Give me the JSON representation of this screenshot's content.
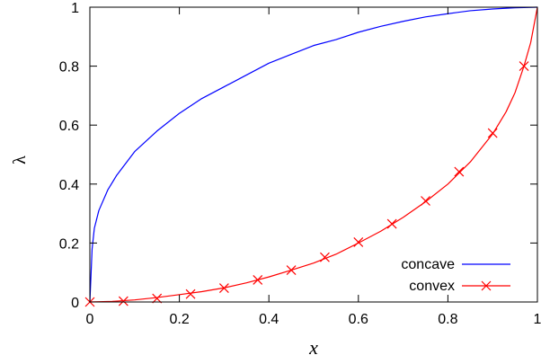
{
  "chart_data": {
    "type": "line",
    "title": "",
    "xlabel": "x",
    "ylabel": "λ",
    "xlim": [
      0,
      1
    ],
    "ylim": [
      0,
      1
    ],
    "x_ticks": [
      "0",
      "0.2",
      "0.4",
      "0.6",
      "0.8",
      "1"
    ],
    "y_ticks": [
      "0",
      "0.2",
      "0.4",
      "0.6",
      "0.8",
      "1"
    ],
    "grid": false,
    "legend_position": "bottom-right",
    "series": [
      {
        "name": "concave",
        "color": "#0000ff",
        "marker": "none",
        "points": [
          [
            0,
            0
          ],
          [
            0.005,
            0.18
          ],
          [
            0.01,
            0.25
          ],
          [
            0.02,
            0.31
          ],
          [
            0.04,
            0.38
          ],
          [
            0.06,
            0.43
          ],
          [
            0.08,
            0.47
          ],
          [
            0.1,
            0.51
          ],
          [
            0.15,
            0.58
          ],
          [
            0.2,
            0.64
          ],
          [
            0.25,
            0.69
          ],
          [
            0.3,
            0.73
          ],
          [
            0.35,
            0.77
          ],
          [
            0.4,
            0.81
          ],
          [
            0.45,
            0.84
          ],
          [
            0.5,
            0.87
          ],
          [
            0.55,
            0.89
          ],
          [
            0.6,
            0.915
          ],
          [
            0.65,
            0.935
          ],
          [
            0.7,
            0.952
          ],
          [
            0.75,
            0.967
          ],
          [
            0.8,
            0.978
          ],
          [
            0.85,
            0.988
          ],
          [
            0.9,
            0.994
          ],
          [
            0.95,
            0.998
          ],
          [
            1,
            1
          ]
        ]
      },
      {
        "name": "convex",
        "color": "#ff0000",
        "marker": "x",
        "points": [
          [
            0,
            0
          ],
          [
            0.05,
            0.002
          ],
          [
            0.1,
            0.007
          ],
          [
            0.15,
            0.015
          ],
          [
            0.2,
            0.025
          ],
          [
            0.25,
            0.035
          ],
          [
            0.3,
            0.048
          ],
          [
            0.35,
            0.065
          ],
          [
            0.4,
            0.085
          ],
          [
            0.45,
            0.108
          ],
          [
            0.5,
            0.132
          ],
          [
            0.55,
            0.162
          ],
          [
            0.6,
            0.2
          ],
          [
            0.65,
            0.24
          ],
          [
            0.7,
            0.287
          ],
          [
            0.75,
            0.34
          ],
          [
            0.8,
            0.4
          ],
          [
            0.85,
            0.475
          ],
          [
            0.9,
            0.57
          ],
          [
            0.93,
            0.645
          ],
          [
            0.95,
            0.71
          ],
          [
            0.97,
            0.8
          ],
          [
            0.985,
            0.88
          ],
          [
            1,
            1
          ]
        ],
        "marker_points": [
          [
            0,
            0
          ],
          [
            0.075,
            0.003
          ],
          [
            0.15,
            0.012
          ],
          [
            0.225,
            0.027
          ],
          [
            0.3,
            0.047
          ],
          [
            0.375,
            0.075
          ],
          [
            0.45,
            0.108
          ],
          [
            0.525,
            0.152
          ],
          [
            0.6,
            0.203
          ],
          [
            0.675,
            0.265
          ],
          [
            0.75,
            0.343
          ],
          [
            0.825,
            0.442
          ],
          [
            0.9,
            0.573
          ],
          [
            0.97,
            0.8
          ]
        ]
      }
    ]
  }
}
